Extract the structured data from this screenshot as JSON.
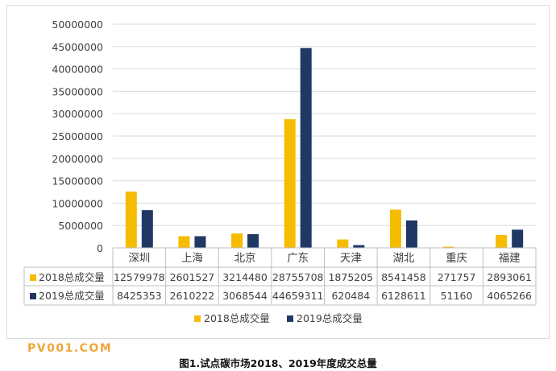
{
  "caption": "图1.试点碳市场2018、2019年度成交总量",
  "watermark": "PV001.COM",
  "colors": {
    "series_2018": "#f5bc00",
    "series_2019": "#203864",
    "grid": "#d9d9d9",
    "table_border": "#bfbfbf",
    "text": "#404040"
  },
  "chart_data": {
    "type": "bar",
    "categories": [
      "深圳",
      "上海",
      "北京",
      "广东",
      "天津",
      "湖北",
      "重庆",
      "福建"
    ],
    "series": [
      {
        "name": "2018总成交量",
        "values": [
          12579978,
          2601527,
          3214480,
          28755708,
          1875205,
          8541458,
          271757,
          2893061
        ]
      },
      {
        "name": "2019总成交量",
        "values": [
          8425353,
          2610222,
          3068544,
          44659311,
          620484,
          6128611,
          51160,
          4065266
        ]
      }
    ],
    "yticks": [
      "0",
      "5000000",
      "10000000",
      "15000000",
      "20000000",
      "25000000",
      "30000000",
      "35000000",
      "40000000",
      "45000000",
      "50000000"
    ],
    "ylim": [
      0,
      50000000
    ],
    "grid": true,
    "legend_position": "bottom",
    "data_table": true
  }
}
